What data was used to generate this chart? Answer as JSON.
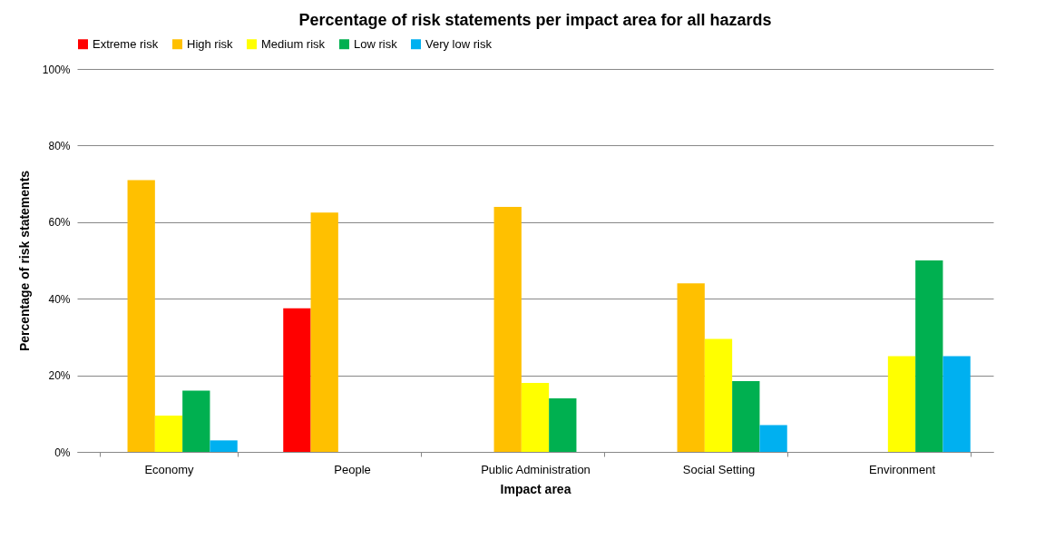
{
  "chart_data": {
    "type": "bar",
    "title": "Percentage of risk statements per impact area for all hazards",
    "xlabel": "Impact area",
    "ylabel": "Percentage of risk statements",
    "categories": [
      "Economy",
      "People",
      "Public Administration",
      "Social Setting",
      "Environment"
    ],
    "series": [
      {
        "name": "Extreme risk",
        "color": "#ff0000",
        "values": [
          null,
          37.5,
          null,
          null,
          null
        ]
      },
      {
        "name": "High risk",
        "color": "#ffc000",
        "values": [
          71,
          62.5,
          64,
          44,
          null
        ]
      },
      {
        "name": "Medium risk",
        "color": "#ffff00",
        "values": [
          9.5,
          null,
          18,
          29.5,
          25
        ]
      },
      {
        "name": "Low risk",
        "color": "#00b050",
        "values": [
          16,
          null,
          14,
          18.5,
          50
        ]
      },
      {
        "name": "Very low risk",
        "color": "#00b0f0",
        "values": [
          3,
          null,
          null,
          7,
          25
        ]
      }
    ],
    "ylim": [
      0,
      100
    ],
    "yticks": [
      {
        "value": 0,
        "label": "0%"
      },
      {
        "value": 20,
        "label": "20%"
      },
      {
        "value": 40,
        "label": "40%"
      },
      {
        "value": 60,
        "label": "60%"
      },
      {
        "value": 80,
        "label": "80%"
      },
      {
        "value": 100,
        "label": "100%"
      }
    ],
    "grid": "y",
    "legend": "top"
  }
}
